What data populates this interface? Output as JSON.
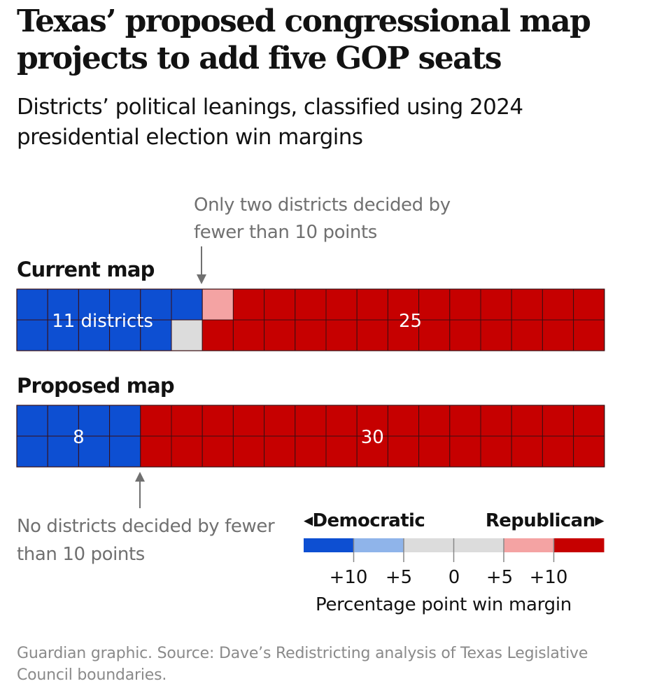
{
  "colors": {
    "dem_strong": "#0d4fd2",
    "dem_lean": "#8fb4ea",
    "tossup": "#dcdcdc",
    "rep_lean": "#f4a3a3",
    "rep_strong": "#c60000",
    "grid": "#3a0e12",
    "annotation": "#707070"
  },
  "chart_data": {
    "type": "waffle",
    "title": "Texas’ proposed congressional map projects to add five GOP seats",
    "subtitle": "Districts’ political leanings, classified using 2024 presidential election win margins",
    "total_districts": 38,
    "maps": [
      {
        "name": "Current map",
        "label": "Current map",
        "grid": {
          "columns": 19,
          "rows": 2
        },
        "counts": {
          "dem_strong": 11,
          "dem_lean": 0,
          "tossup": 1,
          "rep_lean": 1,
          "rep_strong": 25
        },
        "dem_label": "11 districts",
        "rep_label": "25"
      },
      {
        "name": "Proposed map",
        "label": "Proposed map",
        "grid": {
          "columns": 19,
          "rows": 2
        },
        "counts": {
          "dem_strong": 8,
          "dem_lean": 0,
          "tossup": 0,
          "rep_lean": 0,
          "rep_strong": 30
        },
        "dem_label": "8",
        "rep_label": "30"
      }
    ],
    "annotations": {
      "top": "Only two districts decided by fewer than 10 points",
      "bottom": "No districts decided by fewer than 10 points"
    },
    "legend": {
      "left": "Democratic",
      "right": "Republican",
      "ticks": [
        "+10",
        "+5",
        "0",
        "+5",
        "+10"
      ],
      "axis_title": "Percentage point win margin",
      "bins": [
        "dem_strong",
        "dem_lean",
        "tossup",
        "tossup",
        "rep_lean",
        "rep_strong"
      ]
    }
  },
  "source": "Guardian graphic. Source: Dave’s Redistricting analysis of Texas Legislative Council boundaries."
}
